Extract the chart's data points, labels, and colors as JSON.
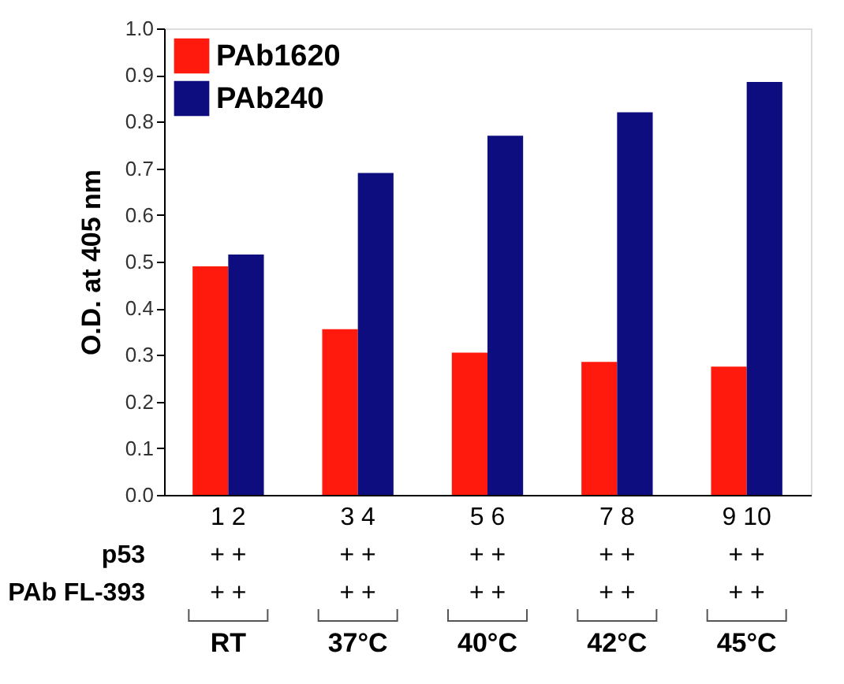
{
  "chart_data": {
    "type": "bar",
    "ylabel": "O.D. at 405 nm",
    "categories": [
      "RT",
      "37°C",
      "40°C",
      "42°C",
      "45°C"
    ],
    "series": [
      {
        "name": "PAb1620",
        "color": "#ff1a0d",
        "values": [
          0.49,
          0.355,
          0.305,
          0.285,
          0.275
        ]
      },
      {
        "name": "PAb240",
        "color": "#0d0d80",
        "values": [
          0.515,
          0.69,
          0.77,
          0.82,
          0.885
        ]
      }
    ],
    "ylim": [
      0,
      1.0
    ],
    "yticks": [
      {
        "value": 0,
        "label": "0.0"
      },
      0.1,
      0.2,
      0.3,
      0.4,
      0.5,
      0.6,
      0.7,
      0.8,
      0.9,
      {
        "value": 1,
        "label": "1.0"
      }
    ],
    "grid": false,
    "legend": "top left",
    "annotations": [
      "1  2",
      "3  4",
      "5  6",
      "7  8",
      "9 10",
      "p53",
      "+  +",
      "+  +",
      "+  +",
      "+  +",
      "+  +",
      "PAb FL-393",
      "+  +",
      "+  +",
      "+  +",
      "+  +",
      "+  +"
    ]
  }
}
